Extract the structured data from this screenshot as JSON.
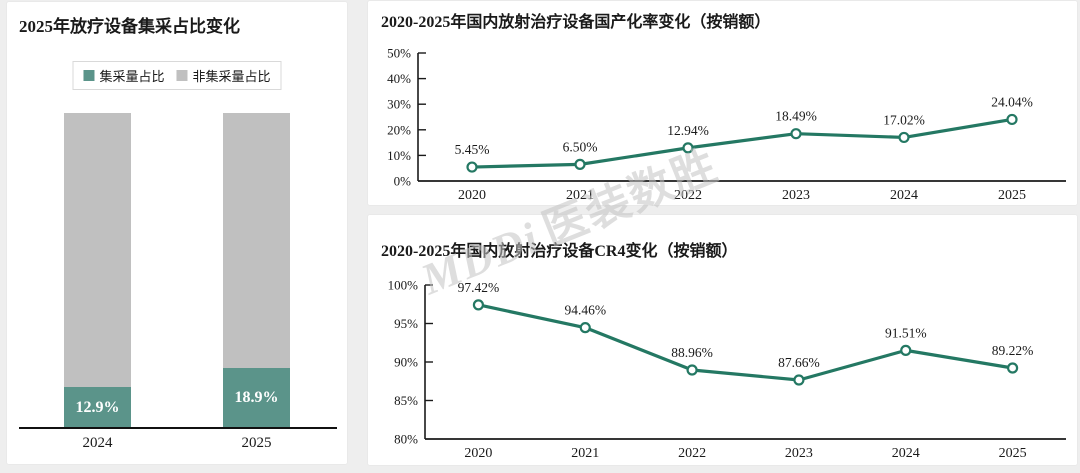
{
  "colors": {
    "bar_primary": "#5b948a",
    "bar_secondary": "#c0c0c0",
    "line": "#247863",
    "axis": "#1a1a1a",
    "bar_label": "#ffffff"
  },
  "watermark": {
    "brand": "MDDi",
    "name": "医装数胜"
  },
  "left_panel": {
    "title": "2025年放疗设备集采占比变化"
  },
  "top_right_panel": {
    "title": "2020-2025年国内放射治疗设备国产化率变化（按销额）"
  },
  "bottom_right_panel": {
    "title": "2020-2025年国内放射治疗设备CR4变化（按销额）"
  },
  "chart_data": [
    {
      "type": "bar",
      "stacked": true,
      "title": "2025年放疗设备集采占比变化",
      "categories": [
        "2024",
        "2025"
      ],
      "series": [
        {
          "name": "集采量占比",
          "values": [
            12.9,
            18.9
          ]
        },
        {
          "name": "非集采量占比",
          "values": [
            87.1,
            81.1
          ]
        }
      ],
      "data_labels": [
        "12.9%",
        "18.9%"
      ],
      "ylim": [
        0,
        100
      ],
      "legend_position": "top",
      "grid": false
    },
    {
      "type": "line",
      "title": "2020-2025年国内放射治疗设备国产化率变化（按销额）",
      "x": [
        "2020",
        "2021",
        "2022",
        "2023",
        "2024",
        "2025"
      ],
      "values": [
        5.45,
        6.5,
        12.94,
        18.49,
        17.02,
        24.04
      ],
      "labels": [
        "5.45%",
        "6.50%",
        "12.94%",
        "18.49%",
        "17.02%",
        "24.04%"
      ],
      "ylim": [
        0,
        50
      ],
      "yticks": [
        "0%",
        "10%",
        "20%",
        "30%",
        "40%",
        "50%"
      ],
      "grid": false,
      "legend_position": "none"
    },
    {
      "type": "line",
      "title": "2020-2025年国内放射治疗设备CR4变化（按销额）",
      "x": [
        "2020",
        "2021",
        "2022",
        "2023",
        "2024",
        "2025"
      ],
      "values": [
        97.42,
        94.46,
        88.96,
        87.66,
        91.51,
        89.22
      ],
      "labels": [
        "97.42%",
        "94.46%",
        "88.96%",
        "87.66%",
        "91.51%",
        "89.22%"
      ],
      "ylim": [
        80,
        100
      ],
      "yticks": [
        "80%",
        "85%",
        "90%",
        "95%",
        "100%"
      ],
      "grid": false,
      "legend_position": "none"
    }
  ]
}
